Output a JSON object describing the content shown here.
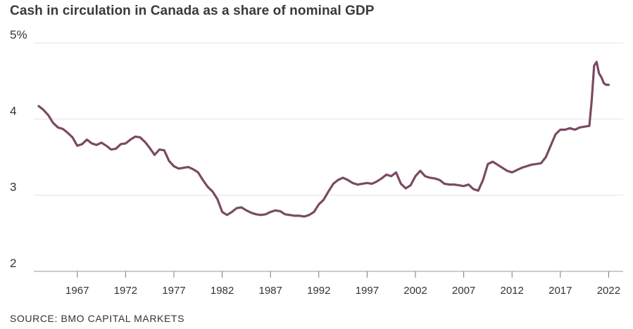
{
  "chart_data": {
    "type": "line",
    "title": "Cash in circulation in Canada as a share of nominal GDP",
    "source": "SOURCE: BMO CAPITAL MARKETS",
    "ylim": [
      2,
      5
    ],
    "xlim": [
      1962.5,
      2023.5
    ],
    "y_ticks": [
      {
        "value": 5,
        "label": "5%"
      },
      {
        "value": 4,
        "label": "4"
      },
      {
        "value": 3,
        "label": "3"
      },
      {
        "value": 2,
        "label": "2"
      }
    ],
    "x_ticks": [
      {
        "value": 1967,
        "label": "1967"
      },
      {
        "value": 1972,
        "label": "1972"
      },
      {
        "value": 1977,
        "label": "1977"
      },
      {
        "value": 1982,
        "label": "1982"
      },
      {
        "value": 1987,
        "label": "1987"
      },
      {
        "value": 1992,
        "label": "1992"
      },
      {
        "value": 1997,
        "label": "1997"
      },
      {
        "value": 2002,
        "label": "2002"
      },
      {
        "value": 2007,
        "label": "2007"
      },
      {
        "value": 2012,
        "label": "2012"
      },
      {
        "value": 2017,
        "label": "2017"
      },
      {
        "value": 2022,
        "label": "2022"
      }
    ],
    "grid": true,
    "line_color": "#7a4a63",
    "series": [
      {
        "x": [
          1963.0,
          1963.5,
          1964.0,
          1964.5,
          1965.0,
          1965.5,
          1966.0,
          1966.5,
          1967.0,
          1967.5,
          1968.0,
          1968.5,
          1969.0,
          1969.5,
          1970.0,
          1970.5,
          1971.0,
          1971.5,
          1972.0,
          1972.5,
          1973.0,
          1973.5,
          1974.0,
          1974.5,
          1975.0,
          1975.5,
          1976.0,
          1976.5,
          1977.0,
          1977.5,
          1978.0,
          1978.5,
          1979.0,
          1979.5,
          1980.0,
          1980.5,
          1981.0,
          1981.5,
          1982.0,
          1982.5,
          1983.0,
          1983.5,
          1984.0,
          1984.5,
          1985.0,
          1985.5,
          1986.0,
          1986.5,
          1987.0,
          1987.5,
          1988.0,
          1988.5,
          1989.0,
          1989.5,
          1990.0,
          1990.5,
          1991.0,
          1991.5,
          1992.0,
          1992.5,
          1993.0,
          1993.5,
          1994.0,
          1994.5,
          1995.0,
          1995.5,
          1996.0,
          1996.5,
          1997.0,
          1997.5,
          1998.0,
          1998.5,
          1999.0,
          1999.5,
          2000.0,
          2000.5,
          2001.0,
          2001.5,
          2002.0,
          2002.5,
          2003.0,
          2003.5,
          2004.0,
          2004.5,
          2005.0,
          2005.5,
          2006.0,
          2006.5,
          2007.0,
          2007.5,
          2008.0,
          2008.5,
          2009.0,
          2009.5,
          2010.0,
          2010.5,
          2011.0,
          2011.5,
          2012.0,
          2012.5,
          2013.0,
          2013.5,
          2014.0,
          2014.5,
          2015.0,
          2015.5,
          2016.0,
          2016.5,
          2017.0,
          2017.5,
          2018.0,
          2018.5,
          2019.0,
          2019.5,
          2020.0,
          2020.25,
          2020.5,
          2020.75,
          2021.0,
          2021.25,
          2021.5,
          2021.75,
          2022.0
        ],
        "values": [
          4.17,
          4.12,
          4.05,
          3.95,
          3.89,
          3.87,
          3.82,
          3.76,
          3.65,
          3.67,
          3.73,
          3.68,
          3.66,
          3.69,
          3.65,
          3.6,
          3.61,
          3.67,
          3.68,
          3.73,
          3.77,
          3.76,
          3.7,
          3.62,
          3.53,
          3.6,
          3.59,
          3.45,
          3.38,
          3.35,
          3.36,
          3.37,
          3.34,
          3.3,
          3.2,
          3.11,
          3.05,
          2.95,
          2.78,
          2.74,
          2.78,
          2.83,
          2.84,
          2.8,
          2.77,
          2.75,
          2.74,
          2.75,
          2.78,
          2.8,
          2.79,
          2.75,
          2.74,
          2.73,
          2.73,
          2.72,
          2.74,
          2.78,
          2.88,
          2.94,
          3.05,
          3.15,
          3.2,
          3.23,
          3.2,
          3.16,
          3.14,
          3.15,
          3.16,
          3.15,
          3.18,
          3.22,
          3.27,
          3.25,
          3.3,
          3.15,
          3.09,
          3.13,
          3.25,
          3.32,
          3.25,
          3.23,
          3.22,
          3.2,
          3.15,
          3.14,
          3.14,
          3.13,
          3.12,
          3.14,
          3.08,
          3.06,
          3.2,
          3.41,
          3.44,
          3.4,
          3.36,
          3.32,
          3.3,
          3.33,
          3.36,
          3.38,
          3.4,
          3.41,
          3.42,
          3.5,
          3.65,
          3.8,
          3.86,
          3.86,
          3.88,
          3.86,
          3.89,
          3.9,
          3.91,
          4.25,
          4.7,
          4.75,
          4.6,
          4.55,
          4.47,
          4.45,
          4.45
        ]
      }
    ]
  }
}
